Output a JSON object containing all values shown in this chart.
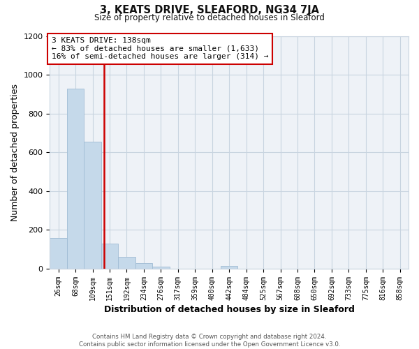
{
  "title": "3, KEATS DRIVE, SLEAFORD, NG34 7JA",
  "subtitle": "Size of property relative to detached houses in Sleaford",
  "xlabel": "Distribution of detached houses by size in Sleaford",
  "ylabel": "Number of detached properties",
  "footer_lines": [
    "Contains HM Land Registry data © Crown copyright and database right 2024.",
    "Contains public sector information licensed under the Open Government Licence v3.0."
  ],
  "bar_labels": [
    "26sqm",
    "68sqm",
    "109sqm",
    "151sqm",
    "192sqm",
    "234sqm",
    "276sqm",
    "317sqm",
    "359sqm",
    "400sqm",
    "442sqm",
    "484sqm",
    "525sqm",
    "567sqm",
    "608sqm",
    "650sqm",
    "692sqm",
    "733sqm",
    "775sqm",
    "816sqm",
    "858sqm"
  ],
  "bar_values": [
    160,
    930,
    655,
    130,
    63,
    28,
    12,
    0,
    0,
    0,
    15,
    0,
    0,
    0,
    0,
    0,
    0,
    0,
    0,
    0,
    0
  ],
  "bar_color": "#c5d9ea",
  "bar_edge_color": "#a0bcd4",
  "ylim": [
    0,
    1200
  ],
  "yticks": [
    0,
    200,
    400,
    600,
    800,
    1000,
    1200
  ],
  "property_line_x": 2.67,
  "property_line_color": "#cc0000",
  "annotation_box_color": "#cc0000",
  "annotation_title": "3 KEATS DRIVE: 138sqm",
  "annotation_line1": "← 83% of detached houses are smaller (1,633)",
  "annotation_line2": "16% of semi-detached houses are larger (314) →",
  "background_color": "#ffffff",
  "plot_bg_color": "#eef2f7",
  "grid_color": "#c8d4e0"
}
